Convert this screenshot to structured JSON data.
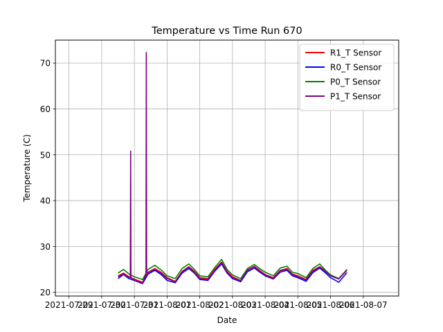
{
  "chart_data": {
    "type": "line",
    "title": "Temperature vs Time Run 670",
    "xlabel": "Date",
    "ylabel": "Temperature (C)",
    "xlim": [
      "2021-07-28T14:00",
      "2021-08-08T02:00"
    ],
    "ylim": [
      19.2,
      75
    ],
    "x_ticks": [
      "2021-07-29",
      "2021-07-30",
      "2021-07-31",
      "2021-08-01",
      "2021-08-02",
      "2021-08-03",
      "2021-08-04",
      "2021-08-05",
      "2021-08-06",
      "2021-08-07"
    ],
    "x_tick_labels": [
      "2021-07-29",
      "2021-07-30",
      "2021-07-31",
      "2021-08-01",
      "2021-08-02",
      "2021-08-03",
      "2021-08-04",
      "2021-08-05",
      "2021-08-06",
      "2021-08-07"
    ],
    "y_ticks": [
      20,
      30,
      40,
      50,
      60,
      70
    ],
    "y_tick_labels": [
      "20",
      "30",
      "40",
      "50",
      "60",
      "70"
    ],
    "grid": true,
    "legend": "top-right",
    "series": [
      {
        "name": "R1_T Sensor",
        "color": "#ff0000",
        "x": [
          "2021-07-30T12:00",
          "2021-07-30T16:00",
          "2021-07-30T20:00",
          "2021-07-31T00:00",
          "2021-07-31T06:00",
          "2021-07-31T10:00",
          "2021-07-31T15:00",
          "2021-07-31T20:00",
          "2021-08-01T00:00",
          "2021-08-01T06:00",
          "2021-08-01T11:00",
          "2021-08-01T16:00",
          "2021-08-01T20:00",
          "2021-08-02T00:00",
          "2021-08-02T06:00",
          "2021-08-02T11:00",
          "2021-08-02T16:00",
          "2021-08-02T20:00",
          "2021-08-03T00:00",
          "2021-08-03T06:00",
          "2021-08-03T11:00",
          "2021-08-03T16:00",
          "2021-08-03T20:00",
          "2021-08-04T00:00",
          "2021-08-04T06:00",
          "2021-08-04T11:00",
          "2021-08-04T16:00",
          "2021-08-04T20:00",
          "2021-08-05T00:00",
          "2021-08-05T06:00",
          "2021-08-05T11:00",
          "2021-08-05T16:00",
          "2021-08-05T20:00",
          "2021-08-06T00:00",
          "2021-08-06T06:00",
          "2021-08-06T12:00"
        ],
        "y": [
          23.6,
          24.2,
          23.4,
          22.9,
          22.2,
          24.4,
          25.2,
          24.3,
          23.2,
          22.4,
          24.6,
          25.6,
          24.6,
          23.2,
          23.0,
          25.0,
          26.6,
          24.6,
          23.4,
          22.6,
          24.9,
          25.7,
          24.8,
          23.9,
          23.2,
          24.8,
          25.2,
          24.0,
          23.6,
          22.8,
          24.8,
          25.6,
          24.8,
          23.8,
          23.0,
          25.0
        ]
      },
      {
        "name": "R0_T Sensor",
        "color": "#0000ff",
        "x": [
          "2021-07-30T12:00",
          "2021-07-30T16:00",
          "2021-07-30T20:00",
          "2021-07-31T00:00",
          "2021-07-31T06:00",
          "2021-07-31T10:00",
          "2021-07-31T15:00",
          "2021-07-31T20:00",
          "2021-08-01T00:00",
          "2021-08-01T06:00",
          "2021-08-01T11:00",
          "2021-08-01T16:00",
          "2021-08-01T20:00",
          "2021-08-02T00:00",
          "2021-08-02T06:00",
          "2021-08-02T11:00",
          "2021-08-02T16:00",
          "2021-08-02T20:00",
          "2021-08-03T00:00",
          "2021-08-03T06:00",
          "2021-08-03T11:00",
          "2021-08-03T16:00",
          "2021-08-03T20:00",
          "2021-08-04T00:00",
          "2021-08-04T06:00",
          "2021-08-04T11:00",
          "2021-08-04T16:00",
          "2021-08-04T20:00",
          "2021-08-05T00:00",
          "2021-08-05T06:00",
          "2021-08-05T11:00",
          "2021-08-05T16:00",
          "2021-08-05T20:00",
          "2021-08-06T00:00",
          "2021-08-06T06:00",
          "2021-08-06T12:00"
        ],
        "y": [
          23.0,
          23.9,
          23.0,
          22.6,
          21.9,
          24.0,
          24.8,
          23.8,
          22.6,
          22.1,
          24.2,
          25.2,
          24.2,
          22.8,
          22.6,
          24.6,
          26.2,
          24.2,
          23.0,
          22.3,
          24.5,
          25.3,
          24.4,
          23.6,
          22.9,
          24.4,
          24.8,
          23.6,
          23.2,
          22.4,
          24.3,
          25.3,
          24.3,
          23.2,
          22.2,
          24.3
        ]
      },
      {
        "name": "P0_T Sensor",
        "color": "#008000",
        "x": [
          "2021-07-30T12:00",
          "2021-07-30T16:00",
          "2021-07-30T20:00",
          "2021-07-31T00:00",
          "2021-07-31T06:00",
          "2021-07-31T10:00",
          "2021-07-31T15:00",
          "2021-07-31T20:00",
          "2021-08-01T00:00",
          "2021-08-01T06:00",
          "2021-08-01T11:00",
          "2021-08-01T16:00",
          "2021-08-01T20:00",
          "2021-08-02T00:00",
          "2021-08-02T06:00",
          "2021-08-02T11:00",
          "2021-08-02T16:00",
          "2021-08-02T20:00",
          "2021-08-03T00:00",
          "2021-08-03T06:00",
          "2021-08-03T11:00",
          "2021-08-03T16:00",
          "2021-08-03T20:00",
          "2021-08-04T00:00",
          "2021-08-04T06:00",
          "2021-08-04T11:00",
          "2021-08-04T16:00",
          "2021-08-04T20:00",
          "2021-08-05T00:00",
          "2021-08-05T06:00",
          "2021-08-05T11:00",
          "2021-08-05T16:00",
          "2021-08-05T20:00",
          "2021-08-06T00:00",
          "2021-08-06T06:00",
          "2021-08-06T12:00"
        ],
        "y": [
          24.2,
          25.0,
          24.0,
          23.4,
          22.8,
          25.0,
          25.9,
          24.8,
          23.6,
          23.0,
          25.2,
          26.2,
          25.0,
          23.6,
          23.4,
          25.4,
          27.2,
          25.0,
          23.8,
          23.0,
          25.2,
          26.1,
          25.2,
          24.4,
          23.6,
          25.3,
          25.7,
          24.4,
          24.1,
          23.2,
          25.2,
          26.2,
          24.9,
          23.8,
          23.0,
          24.9
        ]
      },
      {
        "name": "P1_T Sensor",
        "color": "#800080",
        "x": [
          "2021-07-30T12:00",
          "2021-07-30T16:00",
          "2021-07-30T20:00",
          "2021-07-30T21:00",
          "2021-07-30T21:15",
          "2021-07-30T21:30",
          "2021-07-31T00:00",
          "2021-07-31T06:00",
          "2021-07-31T08:30",
          "2021-07-31T08:45",
          "2021-07-31T09:00",
          "2021-07-31T10:00",
          "2021-07-31T15:00",
          "2021-07-31T20:00",
          "2021-08-01T00:00",
          "2021-08-01T06:00",
          "2021-08-01T11:00",
          "2021-08-01T16:00",
          "2021-08-01T20:00",
          "2021-08-02T00:00",
          "2021-08-02T06:00",
          "2021-08-02T11:00",
          "2021-08-02T16:00",
          "2021-08-02T20:00",
          "2021-08-03T00:00",
          "2021-08-03T06:00",
          "2021-08-03T11:00",
          "2021-08-03T16:00",
          "2021-08-03T20:00",
          "2021-08-04T00:00",
          "2021-08-04T06:00",
          "2021-08-04T11:00",
          "2021-08-04T16:00",
          "2021-08-04T20:00",
          "2021-08-05T00:00",
          "2021-08-05T06:00",
          "2021-08-05T11:00",
          "2021-08-05T16:00",
          "2021-08-05T20:00",
          "2021-08-06T00:00",
          "2021-08-06T06:00",
          "2021-08-06T12:00"
        ],
        "y": [
          23.4,
          24.0,
          23.3,
          23.2,
          50.8,
          23.2,
          22.7,
          22.0,
          24.1,
          72.3,
          24.2,
          24.3,
          25.0,
          24.1,
          23.0,
          22.3,
          24.5,
          25.5,
          24.4,
          23.0,
          22.8,
          24.8,
          26.5,
          24.4,
          23.2,
          22.5,
          24.8,
          25.6,
          24.6,
          23.8,
          23.0,
          24.7,
          25.0,
          23.9,
          23.4,
          22.7,
          24.6,
          25.5,
          24.6,
          23.6,
          22.9,
          24.8
        ]
      }
    ]
  }
}
